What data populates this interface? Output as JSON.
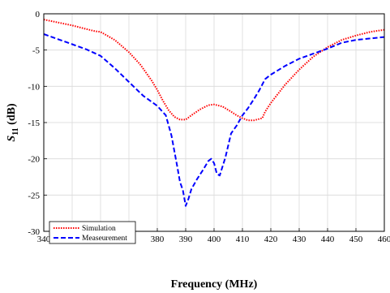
{
  "chart_data": {
    "type": "line",
    "xlabel": "Frequency (MHz)",
    "ylabel_main": "S",
    "ylabel_sub": "11",
    "ylabel_unit": " (dB)",
    "xlim": [
      340,
      460
    ],
    "ylim": [
      -30,
      0
    ],
    "xticks": [
      340,
      350,
      360,
      370,
      380,
      390,
      400,
      410,
      420,
      430,
      440,
      450,
      460
    ],
    "yticks": [
      0,
      -5,
      -10,
      -15,
      -20,
      -25,
      -30
    ],
    "grid": true,
    "legend_position": "bottom-left",
    "series": [
      {
        "name": "Simulation",
        "color": "#ff0000",
        "style": "dotted",
        "x": [
          340,
          345,
          350,
          355,
          358,
          360,
          365,
          370,
          374,
          378,
          380,
          382,
          384,
          386,
          388,
          390,
          392,
          395,
          398,
          400,
          403,
          406,
          408,
          410,
          412,
          414,
          417,
          418,
          420,
          425,
          430,
          435,
          440,
          445,
          450,
          455,
          460
        ],
        "y": [
          -0.8,
          -1.2,
          -1.6,
          -2.1,
          -2.4,
          -2.5,
          -3.6,
          -5.3,
          -7.0,
          -9.2,
          -10.5,
          -12.0,
          -13.3,
          -14.2,
          -14.6,
          -14.6,
          -14.0,
          -13.2,
          -12.6,
          -12.5,
          -12.8,
          -13.5,
          -14.0,
          -14.4,
          -14.7,
          -14.7,
          -14.4,
          -13.5,
          -12.3,
          -9.8,
          -7.7,
          -5.9,
          -4.6,
          -3.6,
          -3.0,
          -2.5,
          -2.2
        ]
      },
      {
        "name": "Measeurement",
        "color": "#0000ff",
        "style": "dashed",
        "x": [
          340,
          345,
          350,
          355,
          360,
          365,
          370,
          375,
          380,
          383,
          385,
          387,
          388,
          389,
          390,
          391,
          392,
          394,
          396,
          398,
          399,
          400,
          401,
          402,
          404,
          406,
          408,
          410,
          412,
          414,
          416,
          418,
          420,
          425,
          430,
          435,
          440,
          445,
          450,
          455,
          460
        ],
        "y": [
          -2.8,
          -3.5,
          -4.2,
          -4.9,
          -5.8,
          -7.5,
          -9.4,
          -11.3,
          -12.7,
          -14.0,
          -16.8,
          -21.0,
          -23.2,
          -24.3,
          -26.5,
          -25.5,
          -24.2,
          -22.8,
          -21.6,
          -20.3,
          -20.0,
          -20.6,
          -22.1,
          -22.3,
          -19.8,
          -16.5,
          -15.4,
          -14.0,
          -13.0,
          -11.8,
          -10.5,
          -9.0,
          -8.4,
          -7.2,
          -6.2,
          -5.5,
          -4.8,
          -4.0,
          -3.6,
          -3.4,
          -3.2
        ]
      }
    ]
  }
}
